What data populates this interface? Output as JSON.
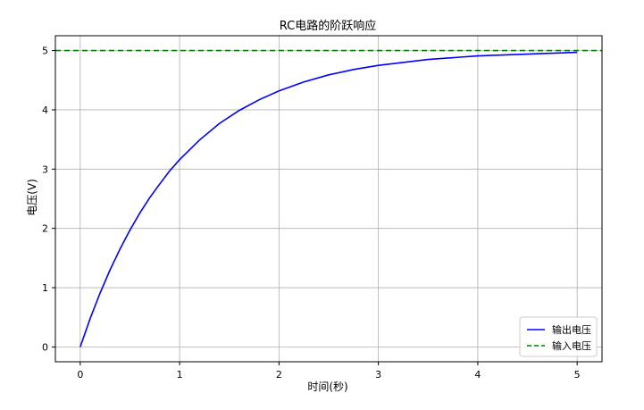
{
  "chart_data": {
    "type": "line",
    "title": "RC电路的阶跃响应",
    "xlabel": "时间(秒)",
    "ylabel": "电压(V)",
    "xlim": [
      -0.25,
      5.25
    ],
    "ylim": [
      -0.25,
      5.25
    ],
    "x_ticks": [
      0,
      1,
      2,
      3,
      4,
      5
    ],
    "y_ticks": [
      0,
      1,
      2,
      3,
      4,
      5
    ],
    "grid": true,
    "legend_position": "lower-right",
    "series": [
      {
        "name": "输出电压",
        "color": "#0000ff",
        "style": "solid",
        "x": [
          0,
          0.1,
          0.2,
          0.3,
          0.4,
          0.5,
          0.6,
          0.7,
          0.8,
          0.9,
          1.0,
          1.2,
          1.4,
          1.6,
          1.8,
          2.0,
          2.25,
          2.5,
          2.75,
          3.0,
          3.5,
          4.0,
          4.5,
          5.0
        ],
        "values": [
          0,
          0.48,
          0.91,
          1.3,
          1.65,
          1.97,
          2.26,
          2.52,
          2.75,
          2.97,
          3.16,
          3.49,
          3.77,
          3.99,
          4.17,
          4.32,
          4.47,
          4.59,
          4.68,
          4.75,
          4.85,
          4.91,
          4.94,
          4.97
        ]
      },
      {
        "name": "输入电压",
        "color": "#008000",
        "style": "dashed",
        "x": [
          -0.25,
          5.25
        ],
        "values": [
          5,
          5
        ]
      }
    ]
  }
}
